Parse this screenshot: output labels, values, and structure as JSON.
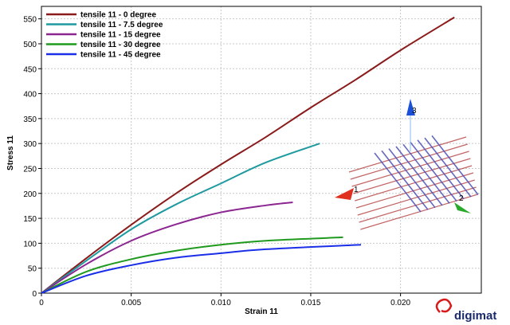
{
  "chart_data": {
    "type": "line",
    "xlabel": "Strain 11",
    "ylabel": "Stress 11",
    "xlim": [
      0,
      0.0245
    ],
    "ylim": [
      0,
      575
    ],
    "xticks": [
      0,
      0.005,
      0.01,
      0.015,
      0.02
    ],
    "xtick_labels": [
      "0",
      "0.005",
      "0.010",
      "0.015",
      "0.020"
    ],
    "yticks": [
      0,
      50,
      100,
      150,
      200,
      250,
      300,
      350,
      400,
      450,
      500,
      550
    ],
    "ytick_labels": [
      "0",
      "50",
      "100",
      "150",
      "200",
      "250",
      "300",
      "350",
      "400",
      "450",
      "500",
      "550"
    ],
    "grid": true,
    "legend_position": "top-left",
    "series": [
      {
        "name": "tensile 11 - 0 degree",
        "color": "#8b1a1a",
        "x": [
          0,
          0.0025,
          0.005,
          0.0075,
          0.01,
          0.0125,
          0.015,
          0.0175,
          0.02,
          0.023
        ],
        "y": [
          0,
          70,
          137,
          200,
          258,
          313,
          372,
          428,
          487,
          553
        ]
      },
      {
        "name": "tensile 11 - 7.5 degree",
        "color": "#1e9aa0",
        "x": [
          0,
          0.0025,
          0.005,
          0.0075,
          0.01,
          0.0125,
          0.0155
        ],
        "y": [
          0,
          65,
          128,
          178,
          220,
          262,
          300
        ]
      },
      {
        "name": "tensile 11 - 15 degree",
        "color": "#8b2590",
        "x": [
          0,
          0.0025,
          0.005,
          0.0075,
          0.01,
          0.0125,
          0.014
        ],
        "y": [
          0,
          58,
          105,
          138,
          162,
          176,
          182
        ]
      },
      {
        "name": "tensile 11 - 30 degree",
        "color": "#1f9a1f",
        "x": [
          0,
          0.0025,
          0.005,
          0.0075,
          0.01,
          0.0125,
          0.0168
        ],
        "y": [
          0,
          43,
          68,
          85,
          97,
          105,
          112
        ]
      },
      {
        "name": "tensile 11 - 45 degree",
        "color": "#1a2ee8",
        "x": [
          0,
          0.0025,
          0.005,
          0.0075,
          0.01,
          0.0125,
          0.0178
        ],
        "y": [
          0,
          35,
          56,
          71,
          80,
          88,
          97
        ]
      }
    ]
  },
  "inset": {
    "axis_labels": [
      "3",
      "1",
      "2"
    ],
    "axis_colors": [
      "#1a4fd8",
      "#e03020",
      "#2aaa2a"
    ]
  },
  "brand": {
    "text": "digimat",
    "color": "#1a2a6c",
    "accent": "#d81a1a"
  }
}
